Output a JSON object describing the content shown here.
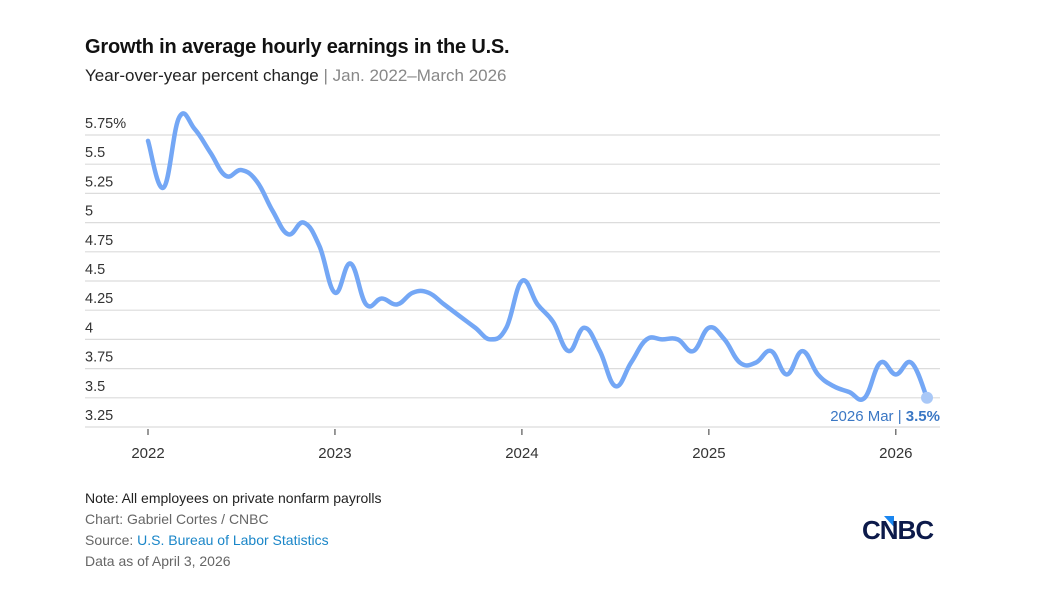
{
  "header": {
    "title": "Growth in average hourly earnings in the U.S.",
    "subtitle_main": "Year-over-year percent change",
    "subtitle_sep": " | ",
    "subtitle_range": "Jan. 2022–March 2026"
  },
  "chart_data": {
    "type": "line",
    "title": "Growth in average hourly earnings in the U.S.",
    "subtitle": "Year-over-year percent change | Jan. 2022–March 2026",
    "xlabel": "",
    "ylabel": "",
    "ylim": [
      3.25,
      5.75
    ],
    "yticks": [
      3.25,
      3.5,
      3.75,
      4,
      4.25,
      4.5,
      4.75,
      5,
      5.25,
      5.5,
      5.75
    ],
    "ytick_labels": [
      "3.25",
      "3.5",
      "3.75",
      "4",
      "4.25",
      "4.5",
      "4.75",
      "5",
      "5.25",
      "5.5",
      "5.75%"
    ],
    "xtick_labels": [
      "2022",
      "2023",
      "2024",
      "2025",
      "2026"
    ],
    "grid": true,
    "line_color": "#74a7f5",
    "series": [
      {
        "name": "Average hourly earnings YoY % change",
        "start": "2022-01",
        "frequency": "monthly",
        "values": [
          5.7,
          5.3,
          5.9,
          5.8,
          5.6,
          5.4,
          5.45,
          5.35,
          5.1,
          4.9,
          5.0,
          4.8,
          4.4,
          4.65,
          4.3,
          4.35,
          4.3,
          4.4,
          4.4,
          4.3,
          4.2,
          4.1,
          4.0,
          4.1,
          4.5,
          4.3,
          4.15,
          3.9,
          4.1,
          3.9,
          3.6,
          3.8,
          4.0,
          4.0,
          4.0,
          3.9,
          4.1,
          4.0,
          3.8,
          3.8,
          3.9,
          3.7,
          3.9,
          3.7,
          3.6,
          3.55,
          3.5,
          3.8,
          3.7,
          3.8,
          3.5
        ]
      }
    ],
    "annotation": {
      "label": "2026 Mar | ",
      "value": "3.5%"
    }
  },
  "footer": {
    "note": "Note: All employees on private nonfarm payrolls",
    "chart_credit": "Chart: Gabriel Cortes / CNBC",
    "source_prefix": "Source: ",
    "source_link": "U.S. Bureau of Labor Statistics",
    "data_as_of": "Data as of April 3, 2026"
  },
  "logo": {
    "text": "CNBC"
  }
}
